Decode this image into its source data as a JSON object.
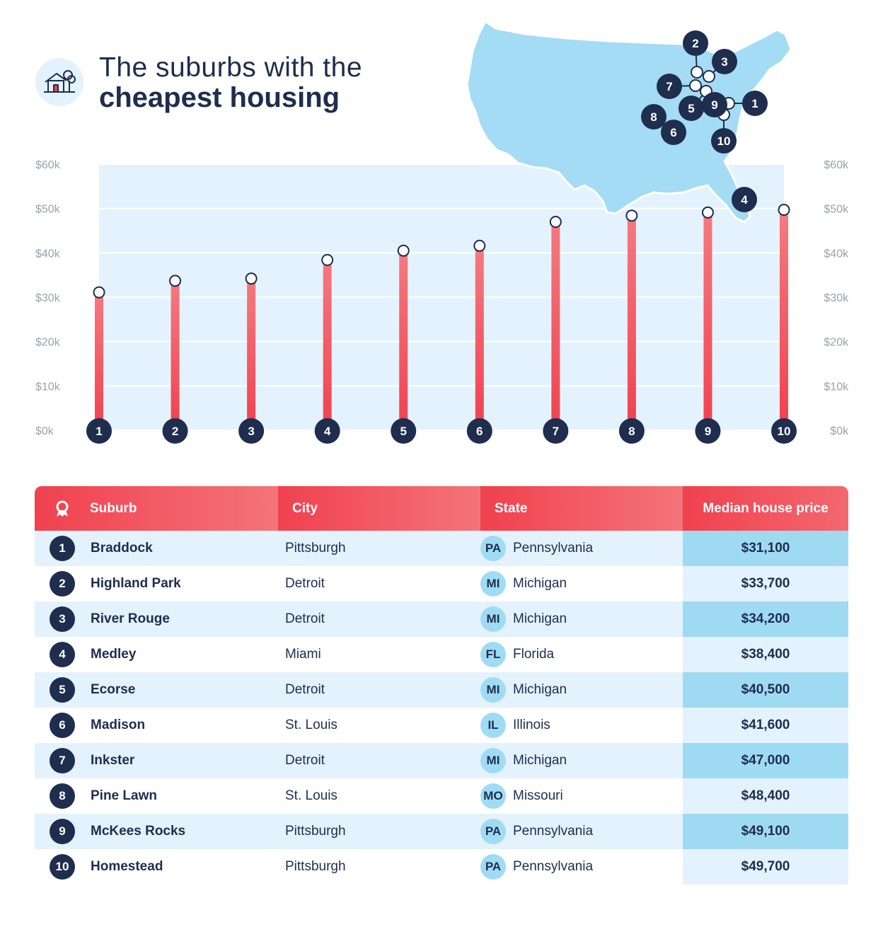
{
  "header": {
    "title_line1": "The suburbs with the",
    "title_line2": "cheapest housing",
    "icon": "house-with-tree-icon"
  },
  "chart_data": {
    "type": "bar",
    "categories": [
      "1",
      "2",
      "3",
      "4",
      "5",
      "6",
      "7",
      "8",
      "9",
      "10"
    ],
    "values": [
      31100,
      33700,
      34200,
      38400,
      40500,
      41600,
      47000,
      48400,
      49100,
      49700
    ],
    "ylim": [
      0,
      60000
    ],
    "yticks": [
      "$0k",
      "$10k",
      "$20k",
      "$30k",
      "$40k",
      "$50k",
      "$60k"
    ],
    "grid": true,
    "bar_color": "#f0414f",
    "badge_color": "#1f2d4e"
  },
  "map": {
    "icon": "usa-map-icon",
    "markers": [
      "1",
      "2",
      "3",
      "4",
      "5",
      "6",
      "7",
      "8",
      "9",
      "10"
    ],
    "map_color": "#a3dcf4"
  },
  "table": {
    "headers": {
      "suburb": "Suburb",
      "city": "City",
      "state": "State",
      "price": "Median house price"
    },
    "rows": [
      {
        "rank": "1",
        "suburb": "Braddock",
        "city": "Pittsburgh",
        "state_abbr": "PA",
        "state": "Pennsylvania",
        "price": "$31,100"
      },
      {
        "rank": "2",
        "suburb": "Highland Park",
        "city": "Detroit",
        "state_abbr": "MI",
        "state": "Michigan",
        "price": "$33,700"
      },
      {
        "rank": "3",
        "suburb": "River Rouge",
        "city": "Detroit",
        "state_abbr": "MI",
        "state": "Michigan",
        "price": "$34,200"
      },
      {
        "rank": "4",
        "suburb": "Medley",
        "city": "Miami",
        "state_abbr": "FL",
        "state": "Florida",
        "price": "$38,400"
      },
      {
        "rank": "5",
        "suburb": "Ecorse",
        "city": "Detroit",
        "state_abbr": "MI",
        "state": "Michigan",
        "price": "$40,500"
      },
      {
        "rank": "6",
        "suburb": "Madison",
        "city": "St. Louis",
        "state_abbr": "IL",
        "state": "Illinois",
        "price": "$41,600"
      },
      {
        "rank": "7",
        "suburb": "Inkster",
        "city": "Detroit",
        "state_abbr": "MI",
        "state": "Michigan",
        "price": "$47,000"
      },
      {
        "rank": "8",
        "suburb": "Pine Lawn",
        "city": "St. Louis",
        "state_abbr": "MO",
        "state": "Missouri",
        "price": "$48,400"
      },
      {
        "rank": "9",
        "suburb": "McKees Rocks",
        "city": "Pittsburgh",
        "state_abbr": "PA",
        "state": "Pennsylvania",
        "price": "$49,100"
      },
      {
        "rank": "10",
        "suburb": "Homestead",
        "city": "Pittsburgh",
        "state_abbr": "PA",
        "state": "Pennsylvania",
        "price": "$49,700"
      }
    ]
  }
}
